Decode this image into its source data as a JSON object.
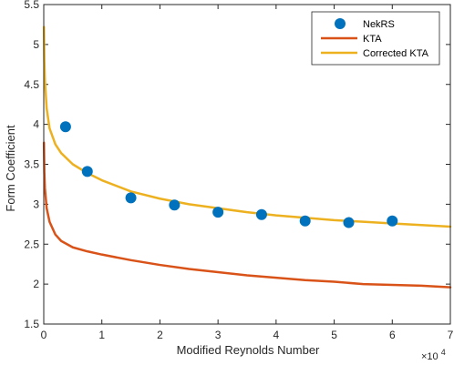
{
  "chart_data": {
    "type": "line",
    "title": "",
    "xlabel": "Modified Reynolds Number",
    "ylabel": "Form Coefficient",
    "x_multiplier_label": "×10",
    "x_multiplier_exponent": "4",
    "xlim": [
      0,
      7
    ],
    "ylim": [
      1.5,
      5.5
    ],
    "x_ticks": [
      0,
      1,
      2,
      3,
      4,
      5,
      6,
      7
    ],
    "x_tick_labels": [
      "0",
      "1",
      "2",
      "3",
      "4",
      "5",
      "6",
      "7"
    ],
    "y_ticks": [
      1.5,
      2,
      2.5,
      3,
      3.5,
      4,
      4.5,
      5,
      5.5
    ],
    "y_tick_labels": [
      "1.5",
      "2",
      "2.5",
      "3",
      "3.5",
      "4",
      "4.5",
      "5",
      "5.5"
    ],
    "grid": false,
    "legend_position": "top-right",
    "series": [
      {
        "name": "NekRS",
        "kind": "scatter",
        "color": "#0072BD",
        "x": [
          0.375,
          0.75,
          1.5,
          2.25,
          3.0,
          3.75,
          4.5,
          5.25,
          6.0
        ],
        "y": [
          3.97,
          3.41,
          3.08,
          2.99,
          2.9,
          2.87,
          2.79,
          2.77,
          2.79
        ]
      },
      {
        "name": "KTA",
        "kind": "line",
        "color": "#D95319",
        "x": [
          0.003,
          0.01,
          0.02,
          0.05,
          0.1,
          0.2,
          0.3,
          0.5,
          0.75,
          1.0,
          1.5,
          2.0,
          2.5,
          3.0,
          3.5,
          4.0,
          4.5,
          5.0,
          5.5,
          6.0,
          6.5,
          7.0
        ],
        "y": [
          3.77,
          3.4,
          3.2,
          2.95,
          2.78,
          2.62,
          2.54,
          2.46,
          2.41,
          2.37,
          2.3,
          2.24,
          2.19,
          2.15,
          2.11,
          2.08,
          2.05,
          2.03,
          2.0,
          1.99,
          1.98,
          1.96
        ]
      },
      {
        "name": "Corrected KTA",
        "kind": "line",
        "color": "#EDB120",
        "x": [
          0.003,
          0.01,
          0.02,
          0.05,
          0.1,
          0.2,
          0.3,
          0.5,
          0.75,
          1.0,
          1.5,
          2.0,
          2.5,
          3.0,
          3.5,
          4.0,
          4.5,
          5.0,
          5.5,
          6.0,
          6.5,
          7.0
        ],
        "y": [
          5.22,
          4.8,
          4.55,
          4.2,
          3.95,
          3.75,
          3.64,
          3.5,
          3.39,
          3.3,
          3.16,
          3.07,
          3.0,
          2.95,
          2.9,
          2.86,
          2.83,
          2.8,
          2.78,
          2.76,
          2.74,
          2.72
        ]
      }
    ]
  }
}
